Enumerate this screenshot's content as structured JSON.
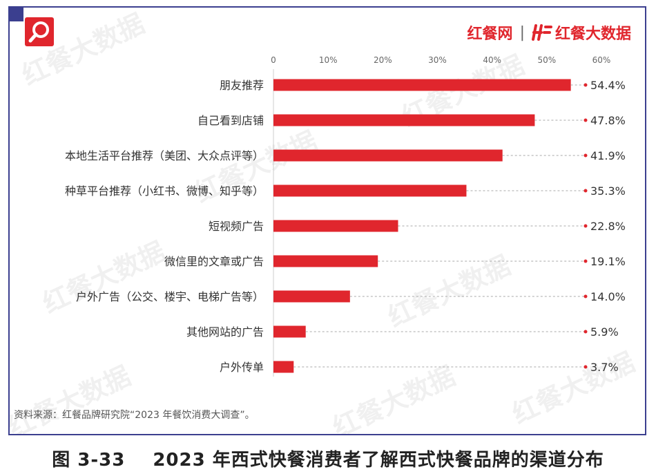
{
  "brand": {
    "logo_text": "红餐网",
    "separator": "|",
    "data_brand": "红餐大数据",
    "watermark_text": "红餐大数据"
  },
  "source_note": "资料来源：红餐品牌研究院“2023 年餐饮消费大调查”。",
  "caption": {
    "number": "图 3-33",
    "title": "2023 年西式快餐消费者了解西式快餐品牌的渠道分布"
  },
  "colors": {
    "bar": "#e0262d",
    "frame": "#3b3f8f"
  },
  "chart_data": {
    "type": "bar",
    "orientation": "horizontal",
    "categories": [
      "朋友推荐",
      "自己看到店铺",
      "本地生活平台推荐（美团、大众点评等）",
      "种草平台推荐（小红书、微博、知乎等）",
      "短视频广告",
      "微信里的文章或广告",
      "户外广告（公交、楼宇、电梯广告等）",
      "其他网站的广告",
      "户外传单"
    ],
    "values": [
      54.4,
      47.8,
      41.9,
      35.3,
      22.8,
      19.1,
      14.0,
      5.9,
      3.7
    ],
    "value_labels": [
      "54.4%",
      "47.8%",
      "41.9%",
      "35.3%",
      "22.8%",
      "19.1%",
      "14.0%",
      "5.9%",
      "3.7%"
    ],
    "xticks": [
      "0",
      "10%",
      "20%",
      "30%",
      "40%",
      "50%",
      "60%"
    ],
    "xlim": [
      0,
      60
    ],
    "axis_position": "top",
    "grid": false
  }
}
